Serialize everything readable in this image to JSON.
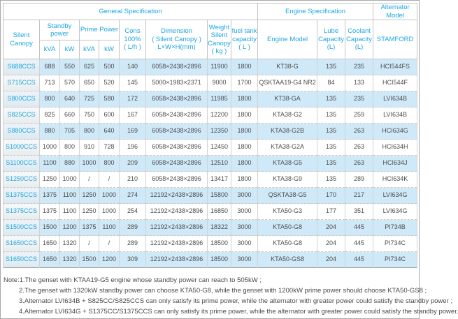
{
  "header": {
    "group_general": "General Specification",
    "group_engine": "Engine Specification",
    "group_alternator": "Alternator Model",
    "silent_canopy": "Silent Canopy",
    "standby_power": "Standby power",
    "prime_power": "Prime Power",
    "units": [
      "kVA",
      "kW",
      "kVA",
      "kW"
    ],
    "cons": "Cons\n100%\n( L/h )",
    "dimension": "Dimension\n( Silent Canopy )\nL×W×H(mm)",
    "weight": "Weight\nSilent\nCanopy\n( kg )",
    "fuel": "fuel tank\ncapacity\n( L )",
    "engine_model": "Engine Model",
    "lube": "Lube\nCapacity\n(L)",
    "coolant": "Coolant\nCapacity\n(L)",
    "stamford": "STAMFORD"
  },
  "rows": [
    [
      "S688CCS",
      "688",
      "550",
      "625",
      "500",
      "140",
      "6058×2438×2896",
      "11900",
      "1800",
      "KT38-G",
      "135",
      "235",
      "HCI544FS"
    ],
    [
      "S715CCS",
      "713",
      "570",
      "650",
      "520",
      "145",
      "5000×1983×2371",
      "9000",
      "1700",
      "QSKTAA19-G4 NR2",
      "84",
      "133",
      "HCI544F"
    ],
    [
      "S800CCS",
      "800",
      "640",
      "725",
      "580",
      "172",
      "6058×2438×2896",
      "11985",
      "1800",
      "KT38-GA",
      "135",
      "235",
      "LVI634B"
    ],
    [
      "S825CCS",
      "825",
      "660",
      "750",
      "600",
      "167",
      "6058×2438×2896",
      "12200",
      "1800",
      "KTA38-G2",
      "135",
      "259",
      "LVI634B"
    ],
    [
      "S880CCS",
      "880",
      "705",
      "800",
      "640",
      "169",
      "6058×2438×2896",
      "12350",
      "1800",
      "KTA38-G2B",
      "135",
      "263",
      "HCI634G"
    ],
    [
      "S1000CCS",
      "1000",
      "800",
      "910",
      "728",
      "196",
      "6058×2438×2896",
      "12450",
      "1800",
      "KTA38-G2A",
      "135",
      "263",
      "HCI634H"
    ],
    [
      "S1100CCS",
      "1100",
      "880",
      "1000",
      "800",
      "209",
      "6058×2438×2896",
      "12510",
      "1800",
      "KTA38-G5",
      "135",
      "263",
      "HCI634J"
    ],
    [
      "S1250CCS",
      "1250",
      "1000",
      "/",
      "/",
      "210",
      "6058×2438×2896",
      "13417",
      "1800",
      "KTA38-G9",
      "135",
      "289",
      "HCI634K"
    ],
    [
      "S1375CCS",
      "1375",
      "1100",
      "1250",
      "1000",
      "274",
      "12192×2438×2896",
      "15800",
      "3000",
      "QSKTA38-G5",
      "170",
      "217",
      "LVI634G"
    ],
    [
      "S1375CCS",
      "1375",
      "1100",
      "1250",
      "1000",
      "254",
      "12192×2438×2896",
      "16850",
      "3000",
      "KTA50-G3",
      "177",
      "351",
      "LVI634G"
    ],
    [
      "S1500CCS",
      "1500",
      "1200",
      "1375",
      "1100",
      "289",
      "12192×2438×2896",
      "18322",
      "3000",
      "KTA50-G8",
      "204",
      "445",
      "PI734B"
    ],
    [
      "S1650CCS",
      "1650",
      "1320",
      "/",
      "/",
      "289",
      "12192×2438×2896",
      "18500",
      "3000",
      "KTA50-G8",
      "204",
      "445",
      "PI734C"
    ],
    [
      "S1650CCS",
      "1650",
      "1320",
      "1500",
      "1200",
      "309",
      "12192×2438×2896",
      "18500",
      "3000",
      "KTA50-GS8",
      "204",
      "445",
      "PI734C"
    ]
  ],
  "notes": [
    "Note:1.The genset with KTAA19-G5 engine whose standby power can reach to 505kW ;",
    "2.The genset with 1320kW standby power can choose KTA50-G8, while the genset with 1200kW prime power should choose KTA50-GS8 ;",
    "3.Alternator LVI634B + S825CC/S825CCS can only satisfy its prime power, while the alternator with greater power could satisfy the standby power ;",
    "4.Alternator LVI634G + S1375CC/S1375CCS can only satisfy its prime power, while the alternator with greater power could satisfy the standby power."
  ],
  "colors": {
    "accent_text": "#1ea7e1",
    "row_alt_background": "#cfe9f8",
    "data_text": "#4d4d4d",
    "border": "#c3c3c3"
  }
}
